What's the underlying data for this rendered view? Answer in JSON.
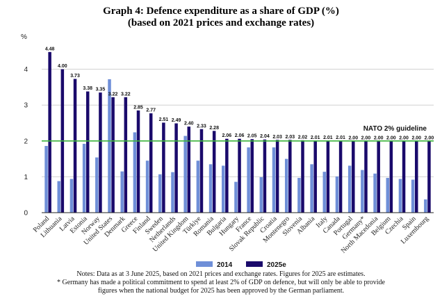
{
  "chart_data": {
    "type": "bar",
    "title": "Graph 4: Defence expenditure as a share of GDP (%)",
    "subtitle": "(based on 2021 prices and exchange rates)",
    "ylabel": "%",
    "ylim": [
      0,
      5
    ],
    "yticks": [
      "0",
      "1",
      "2",
      "3",
      "4"
    ],
    "grid": true,
    "categories": [
      "Poland",
      "Lithuania",
      "Latvia",
      "Estonia",
      "Norway",
      "United States",
      "Denmark",
      "Greece",
      "Finland",
      "Sweden",
      "Netherlands",
      "United Kingdom",
      "Türkiye",
      "Romania",
      "Bulgaria",
      "Hungary",
      "France",
      "Slovak Republic",
      "Croatia",
      "Montenegro",
      "Slovenia",
      "Albania",
      "Italy",
      "Canada",
      "Portugal",
      "Germany*",
      "North Macedonia",
      "Belgium",
      "Czechia",
      "Spain",
      "Luxembourg"
    ],
    "series": [
      {
        "name": "2014",
        "color": "#6f8fd8",
        "values": [
          1.86,
          0.88,
          0.94,
          1.92,
          1.54,
          3.72,
          1.15,
          2.24,
          1.45,
          1.07,
          1.13,
          2.14,
          1.45,
          1.35,
          1.31,
          0.86,
          1.82,
          0.99,
          1.82,
          1.5,
          0.97,
          1.35,
          1.14,
          1.01,
          1.31,
          1.19,
          1.09,
          0.97,
          0.94,
          0.92,
          0.37
        ]
      },
      {
        "name": "2025e",
        "color": "#1a0a6b",
        "values": [
          4.48,
          4.0,
          3.73,
          3.38,
          3.35,
          3.22,
          3.22,
          2.85,
          2.77,
          2.51,
          2.49,
          2.4,
          2.33,
          2.28,
          2.06,
          2.06,
          2.05,
          2.04,
          2.03,
          2.03,
          2.02,
          2.01,
          2.01,
          2.01,
          2.0,
          2.0,
          2.0,
          2.0,
          2.0,
          2.0,
          2.0
        ]
      }
    ],
    "data_labels": [
      "4.48",
      "4.00",
      "3.73",
      "3.38",
      "3.35",
      "3.22",
      "3.22",
      "2.85",
      "2.77",
      "2.51",
      "2.49",
      "2.40",
      "2.33",
      "2.28",
      "2.06",
      "2.06",
      "2.05",
      "2.04",
      "2.03",
      "2.03",
      "2.02",
      "2.01",
      "2.01",
      "2.01",
      "2.00",
      "2.00",
      "2.00",
      "2.00",
      "2.00",
      "2.00",
      "2.00"
    ],
    "guideline": {
      "value": 2,
      "label": "NATO 2% guideline",
      "color": "#3bb33b"
    },
    "legend": {
      "placement": "bottom",
      "entries": [
        "2014",
        "2025e"
      ]
    }
  },
  "notes": {
    "line1": "Notes: Data as at 3 June 2025, based on 2021 prices and exchange rates. Figures for 2025 are estimates.",
    "line2": "* Germany has made a political commitment to spend at least 2% of GDP on defence, but will only be able to provide",
    "line3": "figures when the national budget for 2025 has been approved by the German parliament."
  }
}
